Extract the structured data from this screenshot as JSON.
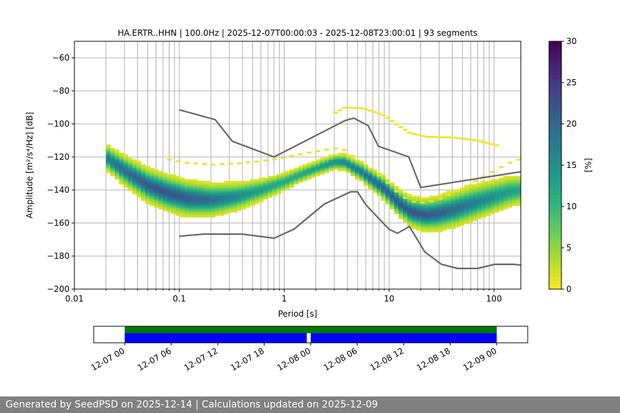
{
  "title": "HA.ERTR..HHN | 100.0Hz | 2025-12-07T00:00:03 - 2025-12-08T23:00:01 | 93 segments",
  "footer": "Generated by SeedPSD on 2025-12-14 | Calculations updated on 2025-12-09",
  "chart_data": {
    "type": "heatmap",
    "title": "HA.ERTR..HHN | 100.0Hz | 2025-12-07T00:00:03 - 2025-12-08T23:00:01 | 93 segments",
    "xlabel": "Period [s]",
    "ylabel": "Amplitude [m²/s⁴/Hz] [dB]",
    "xscale": "log",
    "xlim": [
      0.01,
      180
    ],
    "ylim": [
      -200,
      -50
    ],
    "xticks": [
      0.01,
      0.1,
      1,
      10,
      100
    ],
    "xtick_labels": [
      "0.01",
      "0.1",
      "1",
      "10",
      "100"
    ],
    "yticks": [
      -200,
      -180,
      -160,
      -140,
      -120,
      -100,
      -80,
      -60
    ],
    "ytick_labels": [
      "−200",
      "−180",
      "−160",
      "−140",
      "−120",
      "−100",
      "−80",
      "−60"
    ],
    "grid": true,
    "colorbar": {
      "label": "[%]",
      "min": 0,
      "max": 30,
      "ticks": [
        0,
        5,
        10,
        15,
        20,
        25,
        30
      ],
      "colormap": "viridis_r"
    },
    "psd_mode_curve": [
      [
        0.02,
        -120
      ],
      [
        0.03,
        -128
      ],
      [
        0.05,
        -137
      ],
      [
        0.08,
        -142
      ],
      [
        0.12,
        -145
      ],
      [
        0.2,
        -146
      ],
      [
        0.35,
        -144
      ],
      [
        0.6,
        -140
      ],
      [
        1.0,
        -135
      ],
      [
        1.5,
        -130
      ],
      [
        2.2,
        -126
      ],
      [
        3,
        -123
      ],
      [
        3.8,
        -123
      ],
      [
        4.5,
        -126
      ],
      [
        5.5,
        -129
      ],
      [
        7,
        -134
      ],
      [
        9,
        -139
      ],
      [
        12,
        -147
      ],
      [
        16,
        -153
      ],
      [
        22,
        -155
      ],
      [
        30,
        -154
      ],
      [
        45,
        -151
      ],
      [
        70,
        -147
      ],
      [
        100,
        -144
      ],
      [
        140,
        -141
      ],
      [
        180,
        -140
      ]
    ],
    "nhnm": {
      "name": "NHNM",
      "period": [
        0.1,
        0.22,
        0.32,
        0.8,
        3.8,
        4.6,
        6.3,
        7.9,
        15.4,
        20,
        354.8
      ],
      "db": [
        -91.5,
        -97.4,
        -110.5,
        -120,
        -98,
        -96.5,
        -101,
        -113.5,
        -120,
        -138.5,
        -126
      ]
    },
    "nlnm": {
      "name": "NLNM",
      "period": [
        0.1,
        0.17,
        0.4,
        0.8,
        1.24,
        2.4,
        4.3,
        5,
        6,
        10,
        12,
        15.6,
        21.9,
        31.6,
        45,
        70,
        101,
        154,
        328
      ],
      "db": [
        -168,
        -166.7,
        -166.7,
        -169.2,
        -163.7,
        -148.6,
        -141.1,
        -141.1,
        -149,
        -163.8,
        -166.2,
        -162.1,
        -177.5,
        -185,
        -187.5,
        -187.5,
        -185,
        -185,
        -187.5
      ]
    },
    "availability": {
      "time_ticks": [
        "12-07 00",
        "12-07 06",
        "12-07 12",
        "12-07 18",
        "12-08 00",
        "12-08 06",
        "12-08 12",
        "12-08 18",
        "12-09 00"
      ],
      "range_hours": [
        -4,
        52
      ],
      "green_segments": [
        [
          0,
          48
        ]
      ],
      "blue_segments": [
        [
          0,
          23.5
        ],
        [
          24,
          48
        ]
      ],
      "colors": {
        "green": "#007a00",
        "blue": "#0000ff"
      }
    }
  },
  "colors": {
    "nm_curve": "#666666",
    "grid": "#b0b0b0"
  }
}
